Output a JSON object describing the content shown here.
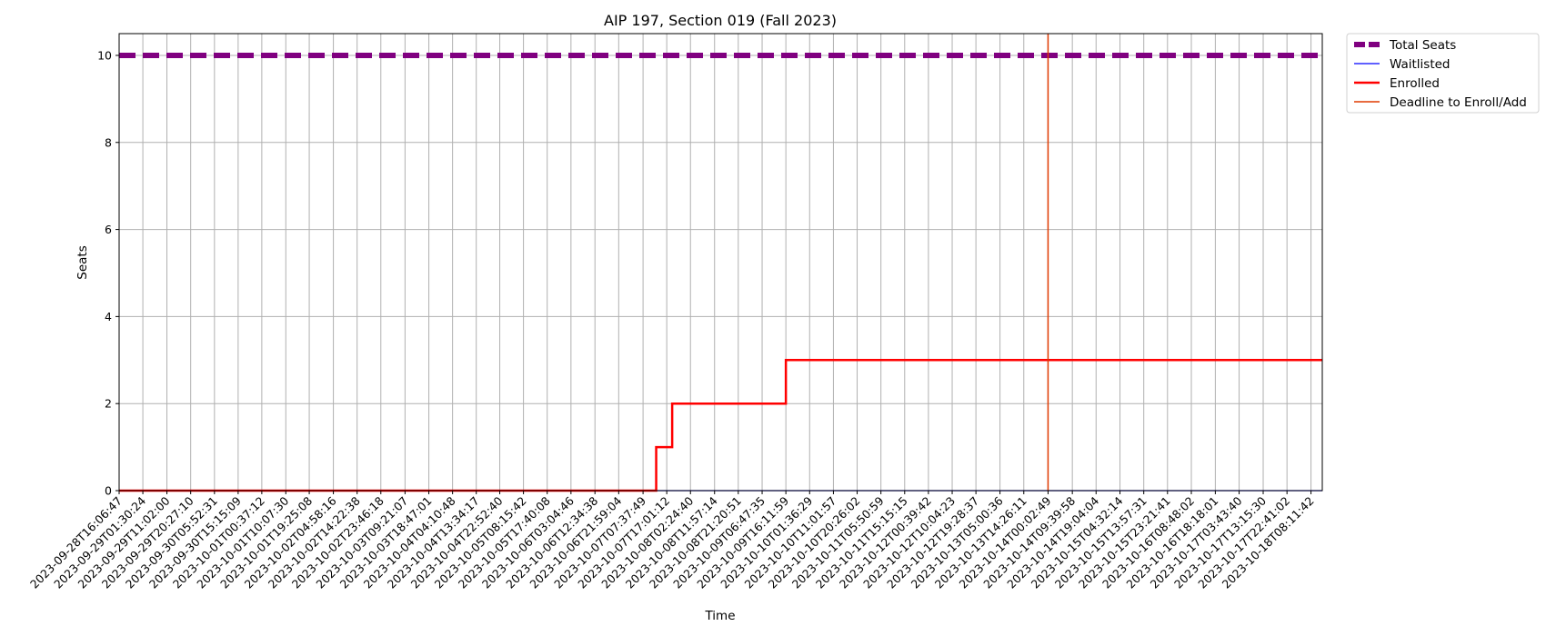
{
  "chart_data": {
    "type": "line",
    "title": "AIP 197, Section 019 (Fall 2023)",
    "xlabel": "Time",
    "ylabel": "Seats",
    "ylim": [
      0,
      10.5
    ],
    "yticks": [
      0,
      2,
      4,
      6,
      8,
      10
    ],
    "grid": true,
    "legend_position": "outside-top-right",
    "x": [
      "2023-09-28T16:06:47",
      "2023-09-29T01:30:24",
      "2023-09-29T11:02:00",
      "2023-09-29T20:27:10",
      "2023-09-30T05:52:31",
      "2023-09-30T15:15:09",
      "2023-10-01T00:37:12",
      "2023-10-01T10:07:30",
      "2023-10-01T19:25:08",
      "2023-10-02T04:58:16",
      "2023-10-02T14:22:38",
      "2023-10-02T23:46:18",
      "2023-10-03T09:21:07",
      "2023-10-03T18:47:01",
      "2023-10-04T04:10:48",
      "2023-10-04T13:34:17",
      "2023-10-04T22:52:40",
      "2023-10-05T08:15:42",
      "2023-10-05T17:40:08",
      "2023-10-06T03:04:46",
      "2023-10-06T12:34:38",
      "2023-10-06T21:59:04",
      "2023-10-07T07:37:49",
      "2023-10-07T17:01:12",
      "2023-10-08T02:24:40",
      "2023-10-08T11:57:14",
      "2023-10-08T21:20:51",
      "2023-10-09T06:47:35",
      "2023-10-09T16:11:59",
      "2023-10-10T01:36:29",
      "2023-10-10T11:01:57",
      "2023-10-10T20:26:02",
      "2023-10-11T05:50:59",
      "2023-10-11T15:15:15",
      "2023-10-12T00:39:42",
      "2023-10-12T10:04:23",
      "2023-10-12T19:28:37",
      "2023-10-13T05:00:36",
      "2023-10-13T14:26:11",
      "2023-10-14T00:02:49",
      "2023-10-14T09:39:58",
      "2023-10-14T19:04:04",
      "2023-10-15T04:32:14",
      "2023-10-15T13:57:31",
      "2023-10-15T23:21:41",
      "2023-10-16T08:48:02",
      "2023-10-16T18:18:01",
      "2023-10-17T03:43:40",
      "2023-10-17T13:15:30",
      "2023-10-17T22:41:02",
      "2023-10-18T08:11:42"
    ],
    "x_end": "2023-10-18T12:40:00",
    "series": [
      {
        "name": "Total Seats",
        "style": "dashed",
        "color": "#800080",
        "points": [
          [
            "2023-09-28T16:06:47",
            10
          ],
          [
            "2023-10-18T12:40:00",
            10
          ]
        ]
      },
      {
        "name": "Waitlisted",
        "style": "solid",
        "color": "#0000ff",
        "points": [
          [
            "2023-09-28T16:06:47",
            0
          ],
          [
            "2023-10-18T12:40:00",
            0
          ]
        ]
      },
      {
        "name": "Enrolled",
        "style": "step",
        "color": "#ff0000",
        "points": [
          [
            "2023-09-28T16:06:47",
            0
          ],
          [
            "2023-10-07T12:50:00",
            1
          ],
          [
            "2023-10-07T19:10:00",
            2
          ],
          [
            "2023-10-09T16:11:59",
            3
          ],
          [
            "2023-10-18T12:40:00",
            3
          ]
        ]
      }
    ],
    "annotations": [
      {
        "name": "Deadline to Enroll/Add",
        "type": "vline",
        "x": "2023-10-14T00:02:49",
        "color": "#e03a00"
      }
    ]
  }
}
